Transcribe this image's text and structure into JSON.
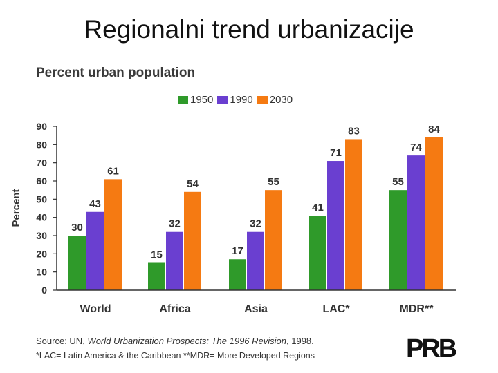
{
  "slide": {
    "title": "Regionalni trend urbanizacije"
  },
  "colors": {
    "1950": "#2f9a2a",
    "1990": "#6a3fd0",
    "2030": "#f57a12",
    "axis": "#333333"
  },
  "chart_data": {
    "type": "bar",
    "title": "Percent urban population",
    "ylabel": "Percent",
    "xlabel": "",
    "ylim": [
      0,
      90
    ],
    "yticks": [
      0,
      10,
      20,
      30,
      40,
      50,
      60,
      70,
      80,
      90
    ],
    "categories": [
      "World",
      "Africa",
      "Asia",
      "LAC*",
      "MDR**"
    ],
    "series": [
      {
        "name": "1950",
        "values": [
          30,
          15,
          17,
          41,
          55
        ]
      },
      {
        "name": "1990",
        "values": [
          43,
          32,
          32,
          71,
          74
        ]
      },
      {
        "name": "2030",
        "values": [
          61,
          54,
          55,
          83,
          84
        ]
      }
    ],
    "legend": "top"
  },
  "source": {
    "prefix": "Source: UN, ",
    "italic": "World Urbanization Prospects: The 1996 Revision",
    "suffix": ", 1998.",
    "footnote": "*LAC= Latin America & the Caribbean **MDR= More Developed Regions"
  },
  "logo": {
    "text": "PRB"
  }
}
